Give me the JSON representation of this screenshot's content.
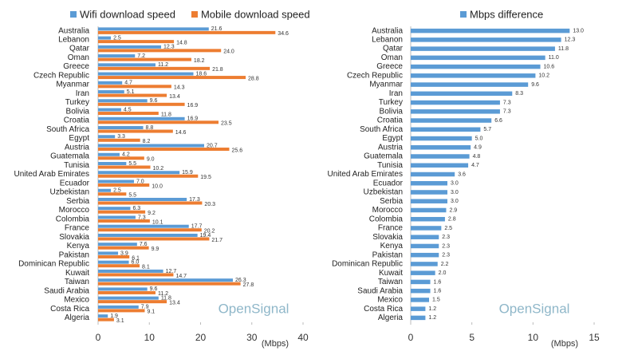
{
  "chart_data": [
    {
      "type": "bar",
      "orientation": "horizontal",
      "categories": [
        "Australia",
        "Lebanon",
        "Qatar",
        "Oman",
        "Greece",
        "Czech Republic",
        "Myanmar",
        "Iran",
        "Turkey",
        "Bolivia",
        "Croatia",
        "South Africa",
        "Egypt",
        "Austria",
        "Guatemala",
        "Tunisia",
        "United Arab Emirates",
        "Ecuador",
        "Uzbekistan",
        "Serbia",
        "Morocco",
        "Colombia",
        "France",
        "Slovakia",
        "Kenya",
        "Pakistan",
        "Dominican Republic",
        "Kuwait",
        "Taiwan",
        "Saudi Arabia",
        "Mexico",
        "Costa Rica",
        "Algeria"
      ],
      "series": [
        {
          "name": "Wifi download speed",
          "color": "#5b9bd5",
          "values": [
            21.6,
            2.5,
            12.3,
            7.2,
            11.2,
            18.6,
            4.7,
            5.1,
            9.6,
            4.5,
            16.9,
            8.8,
            3.3,
            20.7,
            4.2,
            5.5,
            15.9,
            7.0,
            2.5,
            17.3,
            6.3,
            7.3,
            17.7,
            19.4,
            7.6,
            3.9,
            6.0,
            12.7,
            26.3,
            9.6,
            11.8,
            7.9,
            1.9
          ],
          "value_labels": [
            "21.6",
            "2.5",
            "12.3",
            "7.2",
            "11.2",
            "18.6",
            "4.7",
            "5.1",
            "9.6",
            "4.5",
            "16.9",
            "8.8",
            "3.3",
            "20.7",
            "4.2",
            "5.5",
            "15.9",
            "7.0",
            "2.5",
            "17.3",
            "6.3",
            "7.3",
            "17.7",
            "19.4",
            "7.6",
            "3.9",
            "6.0",
            "12.7",
            "26.3",
            "9.6",
            "11.8",
            "7.9",
            "1.9"
          ]
        },
        {
          "name": "Mobile download speed",
          "color": "#ed7d31",
          "values": [
            34.6,
            14.8,
            24.0,
            18.2,
            21.8,
            28.8,
            14.3,
            13.4,
            16.9,
            11.8,
            23.5,
            14.6,
            8.2,
            25.6,
            9.0,
            10.2,
            19.5,
            10.0,
            5.5,
            20.3,
            9.2,
            10.1,
            20.2,
            21.7,
            9.9,
            6.1,
            8.1,
            14.7,
            27.8,
            11.2,
            13.4,
            9.1,
            3.1
          ],
          "value_labels": [
            "34.6",
            "14.8",
            "24.0",
            "18.2",
            "21.8",
            "28.8",
            "14.3",
            "13.4",
            "16.9",
            "11.8",
            "23.5",
            "14.6",
            "8.2",
            "25.6",
            "9.0",
            "10.2",
            "19.5",
            "10.0",
            "5.5",
            "20.3",
            "9.2",
            "10.1",
            "20.2",
            "21.7",
            "9.9",
            "6.1",
            "8.1",
            "14.7",
            "27.8",
            "11.2",
            "13.4",
            "9.1",
            "3.1"
          ]
        }
      ],
      "xlim": [
        0,
        40
      ],
      "xticks": [
        0,
        10,
        20,
        30,
        40
      ],
      "x_label": "(Mbps)",
      "watermark": "OpenSignal",
      "legend": "top"
    },
    {
      "type": "bar",
      "orientation": "horizontal",
      "categories": [
        "Australia",
        "Lebanon",
        "Qatar",
        "Oman",
        "Greece",
        "Czech Republic",
        "Myanmar",
        "Iran",
        "Turkey",
        "Bolivia",
        "Croatia",
        "South Africa",
        "Egypt",
        "Austria",
        "Guatemala",
        "Tunisia",
        "United Arab Emirates",
        "Ecuador",
        "Uzbekistan",
        "Serbia",
        "Morocco",
        "Colombia",
        "France",
        "Slovakia",
        "Kenya",
        "Pakistan",
        "Dominican Republic",
        "Kuwait",
        "Taiwan",
        "Saudi Arabia",
        "Mexico",
        "Costa Rica",
        "Algeria"
      ],
      "series": [
        {
          "name": "Mbps difference",
          "color": "#5b9bd5",
          "values": [
            13.0,
            12.3,
            11.8,
            11.0,
            10.6,
            10.2,
            9.6,
            8.3,
            7.3,
            7.3,
            6.6,
            5.7,
            5.0,
            4.9,
            4.8,
            4.7,
            3.6,
            3.0,
            3.0,
            3.0,
            2.9,
            2.8,
            2.5,
            2.3,
            2.3,
            2.3,
            2.2,
            2.0,
            1.6,
            1.6,
            1.5,
            1.2,
            1.2
          ],
          "value_labels": [
            "13.0",
            "12.3",
            "11.8",
            "11.0",
            "10.6",
            "10.2",
            "9.6",
            "8.3",
            "7.3",
            "7.3",
            "6.6",
            "5.7",
            "5.0",
            "4.9",
            "4.8",
            "4.7",
            "3.6",
            "3.0",
            "3.0",
            "3.0",
            "2.9",
            "2.8",
            "2.5",
            "2.3",
            "2.3",
            "2.3",
            "2.2",
            "2.0",
            "1.6",
            "1.6",
            "1.5",
            "1.2",
            "1.2"
          ]
        }
      ],
      "xlim": [
        0,
        15
      ],
      "xticks": [
        0,
        5,
        10,
        15
      ],
      "x_label": "(Mbps)",
      "watermark": "OpenSignal",
      "legend": "top"
    }
  ]
}
